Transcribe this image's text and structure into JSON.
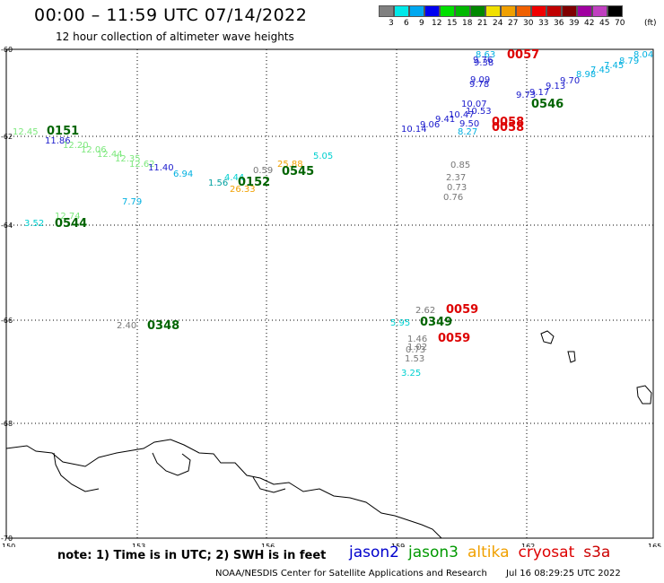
{
  "header": {
    "title": "00:00 – 11:59 UTC 07/14/2022",
    "subtitle": "12 hour collection of altimeter wave heights"
  },
  "legend": {
    "unit": "(ft)",
    "colors": [
      "#808080",
      "#00e8e8",
      "#00a8f0",
      "#0000f0",
      "#00e000",
      "#00b800",
      "#008800",
      "#f0e000",
      "#f0a000",
      "#f06000",
      "#f00000",
      "#c00000",
      "#800000",
      "#a000a0",
      "#c040c0",
      "#000000"
    ],
    "labels": [
      "3",
      "6",
      "9",
      "12",
      "15",
      "18",
      "21",
      "24",
      "27",
      "30",
      "33",
      "36",
      "39",
      "42",
      "45",
      "70"
    ]
  },
  "axes": {
    "lon_labels": [
      "150",
      "153",
      "156",
      "159",
      "162",
      "165"
    ],
    "lat_labels": [
      "-60",
      "-62",
      "-64",
      "-66",
      "-68",
      "-70"
    ]
  },
  "observations": [
    {
      "text": "12.45",
      "color": "#7de87d"
    },
    {
      "text": "0151",
      "color": "#006400",
      "bold": true
    },
    {
      "text": "11.86",
      "color": "#1a1acc"
    },
    {
      "text": "12.20",
      "color": "#7de87d"
    },
    {
      "text": "12.06",
      "color": "#7de87d"
    },
    {
      "text": "12.44",
      "color": "#7de87d"
    },
    {
      "text": "12.35",
      "color": "#7de87d"
    },
    {
      "text": "12.62",
      "color": "#7de87d"
    },
    {
      "text": "11.40",
      "color": "#1a1acc"
    },
    {
      "text": "6.94",
      "color": "#00b0e0"
    },
    {
      "text": "7.79",
      "color": "#00b0e0"
    },
    {
      "text": "1.56",
      "color": "#00a0a0"
    },
    {
      "text": "4.44",
      "color": "#00d0d0"
    },
    {
      "text": "0152",
      "color": "#006400",
      "bold": true
    },
    {
      "text": "26.33",
      "color": "#f0a000"
    },
    {
      "text": "0.59",
      "color": "#777777"
    },
    {
      "text": "25.88",
      "color": "#f0a000"
    },
    {
      "text": "0545",
      "color": "#006400",
      "bold": true
    },
    {
      "text": "5.05",
      "color": "#00d0d0"
    },
    {
      "text": "3.52",
      "color": "#00d0d0"
    },
    {
      "text": "12.74",
      "color": "#7de87d"
    },
    {
      "text": "0544",
      "color": "#006400",
      "bold": true
    },
    {
      "text": "2.40",
      "color": "#777777"
    },
    {
      "text": "0348",
      "color": "#006400",
      "bold": true
    },
    {
      "text": "8.63",
      "color": "#00b0e0"
    },
    {
      "text": "0057",
      "color": "#dd0000",
      "bold": true
    },
    {
      "text": "9.76",
      "color": "#1a1acc"
    },
    {
      "text": "9.38",
      "color": "#1a1acc"
    },
    {
      "text": "9.09",
      "color": "#1a1acc"
    },
    {
      "text": "9.78",
      "color": "#1a1acc"
    },
    {
      "text": "10.14",
      "color": "#1a1acc"
    },
    {
      "text": "9.06",
      "color": "#1a1acc"
    },
    {
      "text": "9.41",
      "color": "#1a1acc"
    },
    {
      "text": "10.47",
      "color": "#1a1acc"
    },
    {
      "text": "10.07",
      "color": "#1a1acc"
    },
    {
      "text": "10.53",
      "color": "#1a1acc"
    },
    {
      "text": "9.50",
      "color": "#1a1acc"
    },
    {
      "text": "8.27",
      "color": "#00b0e0"
    },
    {
      "text": "0058",
      "color": "#dd0000",
      "bold": true
    },
    {
      "text": "0058",
      "color": "#dd0000",
      "bold": true
    },
    {
      "text": "0546",
      "color": "#006400",
      "bold": true
    },
    {
      "text": "9.73",
      "color": "#1a1acc"
    },
    {
      "text": "9.17",
      "color": "#1a1acc"
    },
    {
      "text": "9.13",
      "color": "#1a1acc"
    },
    {
      "text": "9.70",
      "color": "#1a1acc"
    },
    {
      "text": "8.98",
      "color": "#00b0e0"
    },
    {
      "text": "7.45",
      "color": "#00b0e0"
    },
    {
      "text": "7.45",
      "color": "#00b0e0"
    },
    {
      "text": "8.79",
      "color": "#00b0e0"
    },
    {
      "text": "8.04",
      "color": "#00b0e0"
    },
    {
      "text": "0.85",
      "color": "#777777"
    },
    {
      "text": "2.37",
      "color": "#777777"
    },
    {
      "text": "0.73",
      "color": "#777777"
    },
    {
      "text": "0.76",
      "color": "#777777"
    },
    {
      "text": "2.62",
      "color": "#777777"
    },
    {
      "text": "0059",
      "color": "#dd0000",
      "bold": true
    },
    {
      "text": "5.95",
      "color": "#00d0d0"
    },
    {
      "text": "0349",
      "color": "#006400",
      "bold": true
    },
    {
      "text": "1.46",
      "color": "#777777"
    },
    {
      "text": "0059",
      "color": "#dd0000",
      "bold": true
    },
    {
      "text": "1.02",
      "color": "#777777"
    },
    {
      "text": "0.73",
      "color": "#777777"
    },
    {
      "text": "1.53",
      "color": "#777777"
    },
    {
      "text": "3.25",
      "color": "#00d0d0"
    }
  ],
  "footer": {
    "note": "note: 1) Time is in UTC; 2) SWH is in feet",
    "satellites": [
      {
        "name": "jason2",
        "color": "#0000cc"
      },
      {
        "name": "jason3",
        "color": "#009900"
      },
      {
        "name": "altika",
        "color": "#f0a000"
      },
      {
        "name": "cryosat",
        "color": "#dd0000"
      },
      {
        "name": "s3a",
        "color": "#cc0000"
      }
    ],
    "credit": "NOAA/NESDIS Center for Satellite Applications and Research",
    "timestamp": "Jul 16 08:29:25 UTC 2022"
  }
}
